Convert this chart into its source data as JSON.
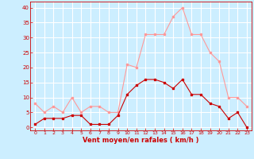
{
  "hours": [
    0,
    1,
    2,
    3,
    4,
    5,
    6,
    7,
    8,
    9,
    10,
    11,
    12,
    13,
    14,
    15,
    16,
    17,
    18,
    19,
    20,
    21,
    22,
    23
  ],
  "wind_avg": [
    1,
    3,
    3,
    3,
    4,
    4,
    1,
    1,
    1,
    4,
    11,
    14,
    16,
    16,
    15,
    13,
    16,
    11,
    11,
    8,
    7,
    3,
    5,
    0
  ],
  "wind_gust": [
    8,
    5,
    7,
    5,
    10,
    5,
    7,
    7,
    5,
    5,
    21,
    20,
    31,
    31,
    31,
    37,
    40,
    31,
    31,
    25,
    22,
    10,
    10,
    7
  ],
  "bg_color": "#cceeff",
  "grid_color": "#ffffff",
  "avg_line_color": "#cc0000",
  "gust_line_color": "#ff9999",
  "xlabel": "Vent moyen/en rafales ( km/h )",
  "xlabel_color": "#cc0000",
  "tick_color": "#cc0000",
  "yticks": [
    0,
    5,
    10,
    15,
    20,
    25,
    30,
    35,
    40
  ],
  "ylim": [
    -1,
    42
  ],
  "xlim": [
    -0.5,
    23.5
  ]
}
